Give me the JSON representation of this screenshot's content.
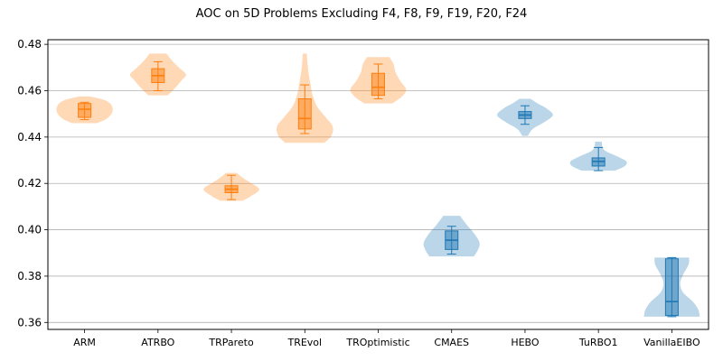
{
  "chart_data": {
    "type": "violin",
    "title": "AOC on 5D Problems Excluding F4, F8, F9, F19, F20, F24",
    "xlabel": "",
    "ylabel": "",
    "ylim": [
      0.357,
      0.482
    ],
    "yticks": [
      "0.36",
      "0.38",
      "0.40",
      "0.42",
      "0.44",
      "0.46",
      "0.48"
    ],
    "grid": "horizontal",
    "colors": {
      "orange": "#ff7f0e",
      "blue": "#1f77b4"
    },
    "categories": [
      "ARM",
      "ATRBO",
      "TRPareto",
      "TREvol",
      "TROptimistic",
      "CMAES",
      "HEBO",
      "TuRBO1",
      "VanillaEIBO"
    ],
    "series": [
      {
        "label": "ARM",
        "color": "orange",
        "min": 0.4475,
        "q1": 0.4485,
        "median": 0.452,
        "q3": 0.4545,
        "max": 0.455,
        "kde_min": 0.446,
        "kde_max": 0.4575,
        "density": [
          [
            0.446,
            0.45
          ],
          [
            0.448,
            0.8
          ],
          [
            0.451,
            1.0
          ],
          [
            0.454,
            0.95
          ],
          [
            0.456,
            0.7
          ],
          [
            0.4575,
            0.2
          ]
        ]
      },
      {
        "label": "ATRBO",
        "color": "orange",
        "min": 0.46,
        "q1": 0.4635,
        "median": 0.4665,
        "q3": 0.4695,
        "max": 0.4725,
        "kde_min": 0.458,
        "kde_max": 0.476,
        "density": [
          [
            0.458,
            0.35
          ],
          [
            0.461,
            0.6
          ],
          [
            0.4645,
            0.85
          ],
          [
            0.467,
            1.0
          ],
          [
            0.47,
            0.75
          ],
          [
            0.473,
            0.5
          ],
          [
            0.476,
            0.3
          ]
        ]
      },
      {
        "label": "TRPareto",
        "color": "orange",
        "min": 0.413,
        "q1": 0.416,
        "median": 0.4175,
        "q3": 0.419,
        "max": 0.4235,
        "kde_min": 0.4125,
        "kde_max": 0.4245,
        "density": [
          [
            0.4125,
            0.4
          ],
          [
            0.4145,
            0.7
          ],
          [
            0.4175,
            1.0
          ],
          [
            0.4205,
            0.65
          ],
          [
            0.4225,
            0.4
          ],
          [
            0.4245,
            0.2
          ]
        ]
      },
      {
        "label": "TREvol",
        "color": "orange",
        "min": 0.4415,
        "q1": 0.4435,
        "median": 0.448,
        "q3": 0.4565,
        "max": 0.4625,
        "kde_min": 0.4375,
        "kde_max": 0.476,
        "density": [
          [
            0.4375,
            0.7
          ],
          [
            0.4405,
            0.95
          ],
          [
            0.4445,
            1.0
          ],
          [
            0.4485,
            0.75
          ],
          [
            0.453,
            0.45
          ],
          [
            0.458,
            0.28
          ],
          [
            0.463,
            0.2
          ],
          [
            0.469,
            0.12
          ],
          [
            0.476,
            0.07
          ]
        ]
      },
      {
        "label": "TROptimistic",
        "color": "orange",
        "min": 0.4565,
        "q1": 0.458,
        "median": 0.4615,
        "q3": 0.4675,
        "max": 0.4715,
        "kde_min": 0.4545,
        "kde_max": 0.4745,
        "density": [
          [
            0.4545,
            0.5
          ],
          [
            0.4575,
            0.85
          ],
          [
            0.4605,
            1.0
          ],
          [
            0.464,
            0.8
          ],
          [
            0.468,
            0.62
          ],
          [
            0.4715,
            0.55
          ],
          [
            0.4745,
            0.4
          ]
        ]
      },
      {
        "label": "CMAES",
        "color": "blue",
        "min": 0.3895,
        "q1": 0.3915,
        "median": 0.3955,
        "q3": 0.3995,
        "max": 0.4015,
        "kde_min": 0.3885,
        "kde_max": 0.406,
        "density": [
          [
            0.3885,
            0.8
          ],
          [
            0.3915,
            0.95
          ],
          [
            0.3945,
            1.0
          ],
          [
            0.3985,
            0.8
          ],
          [
            0.402,
            0.55
          ],
          [
            0.406,
            0.3
          ]
        ]
      },
      {
        "label": "HEBO",
        "color": "blue",
        "min": 0.4455,
        "q1": 0.448,
        "median": 0.4495,
        "q3": 0.451,
        "max": 0.4535,
        "kde_min": 0.4405,
        "kde_max": 0.4565,
        "density": [
          [
            0.4405,
            0.1
          ],
          [
            0.4435,
            0.28
          ],
          [
            0.4465,
            0.7
          ],
          [
            0.4495,
            1.0
          ],
          [
            0.4525,
            0.75
          ],
          [
            0.4545,
            0.45
          ],
          [
            0.4565,
            0.2
          ]
        ]
      },
      {
        "label": "TuRBO1",
        "color": "blue",
        "min": 0.4255,
        "q1": 0.4275,
        "median": 0.4295,
        "q3": 0.431,
        "max": 0.4355,
        "kde_min": 0.4255,
        "kde_max": 0.438,
        "density": [
          [
            0.4255,
            0.6
          ],
          [
            0.4275,
            0.95
          ],
          [
            0.4295,
            1.0
          ],
          [
            0.4315,
            0.7
          ],
          [
            0.434,
            0.25
          ],
          [
            0.436,
            0.14
          ],
          [
            0.438,
            0.12
          ]
        ]
      },
      {
        "label": "VanillaEIBO",
        "color": "blue",
        "min": 0.3625,
        "q1": 0.363,
        "median": 0.369,
        "q3": 0.3875,
        "max": 0.388,
        "kde_min": 0.3625,
        "kde_max": 0.388,
        "density": [
          [
            0.3625,
            1.0
          ],
          [
            0.3655,
            0.95
          ],
          [
            0.369,
            0.75
          ],
          [
            0.373,
            0.4
          ],
          [
            0.377,
            0.3
          ],
          [
            0.381,
            0.42
          ],
          [
            0.385,
            0.6
          ],
          [
            0.388,
            0.62
          ]
        ]
      }
    ]
  }
}
